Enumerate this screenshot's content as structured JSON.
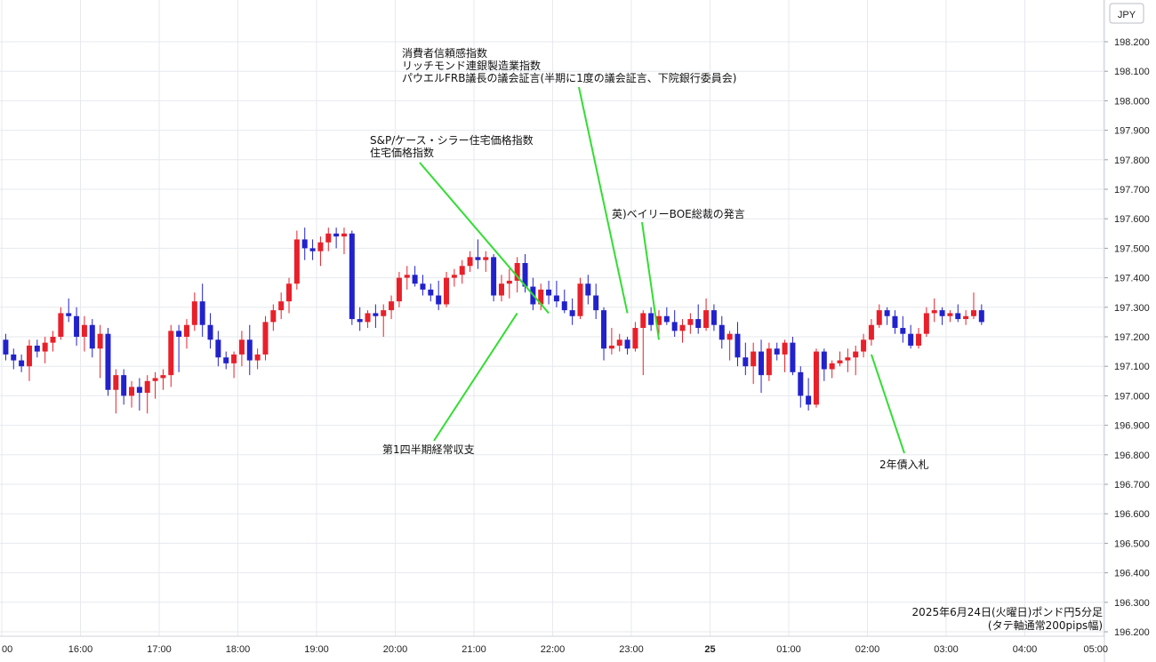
{
  "chart_data": {
    "type": "candlestick",
    "currency_label": "JPY",
    "caption": [
      "2025年6月24日(火曜日)ポンド円5分足",
      "(タテ軸通常200pips幅)"
    ],
    "ylim": [
      196.2,
      198.3
    ],
    "y_ticks": [
      "198.200",
      "198.100",
      "198.000",
      "197.900",
      "197.800",
      "197.700",
      "197.600",
      "197.500",
      "197.400",
      "197.300",
      "197.200",
      "197.100",
      "197.000",
      "196.900",
      "196.800",
      "196.700",
      "196.600",
      "196.500",
      "196.400",
      "196.300",
      "196.200"
    ],
    "x_ticks": [
      {
        "label": "00",
        "bar": 0,
        "bold": false
      },
      {
        "label": "16:00",
        "bar": 10,
        "bold": false
      },
      {
        "label": "17:00",
        "bar": 20,
        "bold": false
      },
      {
        "label": "18:00",
        "bar": 30,
        "bold": false
      },
      {
        "label": "19:00",
        "bar": 40,
        "bold": false
      },
      {
        "label": "20:00",
        "bar": 50,
        "bold": false
      },
      {
        "label": "21:00",
        "bar": 60,
        "bold": false
      },
      {
        "label": "22:00",
        "bar": 70,
        "bold": false
      },
      {
        "label": "23:00",
        "bar": 80,
        "bold": false
      },
      {
        "label": "25",
        "bar": 90,
        "bold": true
      },
      {
        "label": "01:00",
        "bar": 100,
        "bold": false
      },
      {
        "label": "02:00",
        "bar": 110,
        "bold": false
      },
      {
        "label": "03:00",
        "bar": 120,
        "bold": false
      },
      {
        "label": "04:00",
        "bar": 130,
        "bold": false
      },
      {
        "label": "05:00",
        "bar": 140,
        "bold": false
      }
    ],
    "up_color": "#e8202a",
    "down_color": "#2222cc",
    "annotation_color": "#33dd33",
    "ohlc": [
      [
        197.19,
        197.21,
        197.12,
        197.14
      ],
      [
        197.14,
        197.16,
        197.09,
        197.12
      ],
      [
        197.12,
        197.14,
        197.08,
        197.1
      ],
      [
        197.1,
        197.19,
        197.05,
        197.17
      ],
      [
        197.17,
        197.19,
        197.13,
        197.15
      ],
      [
        197.15,
        197.2,
        197.11,
        197.18
      ],
      [
        197.18,
        197.22,
        197.15,
        197.2
      ],
      [
        197.2,
        197.3,
        197.19,
        197.28
      ],
      [
        197.28,
        197.33,
        197.25,
        197.27
      ],
      [
        197.27,
        197.3,
        197.17,
        197.2
      ],
      [
        197.2,
        197.27,
        197.15,
        197.24
      ],
      [
        197.24,
        197.26,
        197.13,
        197.16
      ],
      [
        197.16,
        197.24,
        197.06,
        197.21
      ],
      [
        197.21,
        197.23,
        197.0,
        197.02
      ],
      [
        197.02,
        197.09,
        196.94,
        197.07
      ],
      [
        197.07,
        197.09,
        196.97,
        197.0
      ],
      [
        197.0,
        197.05,
        196.96,
        197.03
      ],
      [
        197.03,
        197.06,
        196.95,
        197.01
      ],
      [
        197.01,
        197.07,
        196.94,
        197.05
      ],
      [
        197.05,
        197.08,
        196.99,
        197.06
      ],
      [
        197.06,
        197.09,
        197.02,
        197.07
      ],
      [
        197.07,
        197.24,
        197.03,
        197.22
      ],
      [
        197.22,
        197.24,
        197.08,
        197.2
      ],
      [
        197.2,
        197.26,
        197.16,
        197.24
      ],
      [
        197.24,
        197.35,
        197.22,
        197.32
      ],
      [
        197.32,
        197.38,
        197.2,
        197.24
      ],
      [
        197.24,
        197.28,
        197.16,
        197.19
      ],
      [
        197.19,
        197.22,
        197.1,
        197.13
      ],
      [
        197.13,
        197.15,
        197.09,
        197.11
      ],
      [
        197.11,
        197.15,
        197.06,
        197.14
      ],
      [
        197.14,
        197.22,
        197.1,
        197.19
      ],
      [
        197.19,
        197.24,
        197.07,
        197.12
      ],
      [
        197.12,
        197.16,
        197.09,
        197.14
      ],
      [
        197.14,
        197.27,
        197.12,
        197.25
      ],
      [
        197.25,
        197.31,
        197.22,
        197.29
      ],
      [
        197.29,
        197.35,
        197.26,
        197.32
      ],
      [
        197.32,
        197.4,
        197.28,
        197.38
      ],
      [
        197.38,
        197.56,
        197.36,
        197.53
      ],
      [
        197.53,
        197.57,
        197.46,
        197.5
      ],
      [
        197.5,
        197.53,
        197.46,
        197.49
      ],
      [
        197.49,
        197.54,
        197.44,
        197.52
      ],
      [
        197.52,
        197.57,
        197.49,
        197.55
      ],
      [
        197.55,
        197.57,
        197.5,
        197.54
      ],
      [
        197.54,
        197.57,
        197.48,
        197.55
      ],
      [
        197.55,
        197.56,
        197.24,
        197.26
      ],
      [
        197.26,
        197.3,
        197.22,
        197.25
      ],
      [
        197.25,
        197.29,
        197.23,
        197.28
      ],
      [
        197.28,
        197.31,
        197.23,
        197.27
      ],
      [
        197.27,
        197.31,
        197.2,
        197.29
      ],
      [
        197.29,
        197.34,
        197.26,
        197.32
      ],
      [
        197.32,
        197.42,
        197.3,
        197.4
      ],
      [
        197.4,
        197.44,
        197.36,
        197.41
      ],
      [
        197.41,
        197.44,
        197.37,
        197.38
      ],
      [
        197.38,
        197.41,
        197.34,
        197.36
      ],
      [
        197.36,
        197.38,
        197.32,
        197.34
      ],
      [
        197.34,
        197.39,
        197.29,
        197.31
      ],
      [
        197.31,
        197.42,
        197.3,
        197.4
      ],
      [
        197.4,
        197.43,
        197.37,
        197.41
      ],
      [
        197.41,
        197.46,
        197.38,
        197.44
      ],
      [
        197.44,
        197.49,
        197.42,
        197.47
      ],
      [
        197.47,
        197.53,
        197.43,
        197.46
      ],
      [
        197.46,
        197.49,
        197.42,
        197.47
      ],
      [
        197.47,
        197.48,
        197.32,
        197.34
      ],
      [
        197.34,
        197.41,
        197.32,
        197.38
      ],
      [
        197.38,
        197.43,
        197.33,
        197.39
      ],
      [
        197.39,
        197.47,
        197.35,
        197.45
      ],
      [
        197.45,
        197.48,
        197.35,
        197.37
      ],
      [
        197.37,
        197.4,
        197.29,
        197.31
      ],
      [
        197.31,
        197.38,
        197.29,
        197.36
      ],
      [
        197.36,
        197.39,
        197.31,
        197.34
      ],
      [
        197.34,
        197.39,
        197.3,
        197.32
      ],
      [
        197.32,
        197.36,
        197.28,
        197.29
      ],
      [
        197.29,
        197.33,
        197.24,
        197.27
      ],
      [
        197.27,
        197.4,
        197.26,
        197.38
      ],
      [
        197.38,
        197.41,
        197.31,
        197.34
      ],
      [
        197.34,
        197.38,
        197.26,
        197.29
      ],
      [
        197.29,
        197.3,
        197.12,
        197.16
      ],
      [
        197.16,
        197.23,
        197.14,
        197.17
      ],
      [
        197.17,
        197.21,
        197.15,
        197.19
      ],
      [
        197.19,
        197.2,
        197.14,
        197.16
      ],
      [
        197.16,
        197.25,
        197.15,
        197.23
      ],
      [
        197.23,
        197.29,
        197.07,
        197.28
      ],
      [
        197.28,
        197.3,
        197.22,
        197.24
      ],
      [
        197.24,
        197.29,
        197.21,
        197.27
      ],
      [
        197.27,
        197.3,
        197.24,
        197.25
      ],
      [
        197.25,
        197.29,
        197.2,
        197.22
      ],
      [
        197.22,
        197.26,
        197.18,
        197.24
      ],
      [
        197.24,
        197.28,
        197.21,
        197.26
      ],
      [
        197.26,
        197.31,
        197.21,
        197.23
      ],
      [
        197.23,
        197.33,
        197.22,
        197.29
      ],
      [
        197.29,
        197.31,
        197.22,
        197.24
      ],
      [
        197.24,
        197.27,
        197.16,
        197.19
      ],
      [
        197.19,
        197.22,
        197.12,
        197.21
      ],
      [
        197.21,
        197.25,
        197.1,
        197.13
      ],
      [
        197.13,
        197.18,
        197.07,
        197.1
      ],
      [
        197.1,
        197.18,
        197.04,
        197.15
      ],
      [
        197.15,
        197.19,
        197.01,
        197.07
      ],
      [
        197.07,
        197.18,
        197.05,
        197.16
      ],
      [
        197.16,
        197.18,
        197.12,
        197.14
      ],
      [
        197.14,
        197.19,
        197.08,
        197.18
      ],
      [
        197.18,
        197.2,
        197.07,
        197.08
      ],
      [
        197.08,
        197.1,
        196.96,
        197.0
      ],
      [
        197.0,
        197.06,
        196.95,
        196.97
      ],
      [
        196.97,
        197.16,
        196.96,
        197.15
      ],
      [
        197.15,
        197.16,
        197.05,
        197.09
      ],
      [
        197.09,
        197.12,
        197.06,
        197.11
      ],
      [
        197.11,
        197.15,
        197.1,
        197.12
      ],
      [
        197.12,
        197.16,
        197.08,
        197.13
      ],
      [
        197.13,
        197.17,
        197.07,
        197.15
      ],
      [
        197.15,
        197.21,
        197.13,
        197.19
      ],
      [
        197.19,
        197.26,
        197.17,
        197.24
      ],
      [
        197.24,
        197.31,
        197.23,
        197.29
      ],
      [
        197.29,
        197.3,
        197.24,
        197.27
      ],
      [
        197.27,
        197.29,
        197.21,
        197.23
      ],
      [
        197.23,
        197.27,
        197.18,
        197.21
      ],
      [
        197.21,
        197.24,
        197.16,
        197.17
      ],
      [
        197.17,
        197.23,
        197.16,
        197.21
      ],
      [
        197.21,
        197.3,
        197.2,
        197.28
      ],
      [
        197.28,
        197.33,
        197.25,
        197.29
      ],
      [
        197.29,
        197.3,
        197.24,
        197.27
      ],
      [
        197.27,
        197.29,
        197.25,
        197.28
      ],
      [
        197.28,
        197.31,
        197.25,
        197.26
      ],
      [
        197.26,
        197.29,
        197.24,
        197.27
      ],
      [
        197.27,
        197.35,
        197.26,
        197.29
      ],
      [
        197.29,
        197.31,
        197.24,
        197.25
      ]
    ],
    "annotations": [
      {
        "lines": [
          "消費者信頼感指数",
          "リッチモンド連銀製造業指数",
          "パウエルFRB議長の議会証言(半期に1度の議会証言、下院銀行委員会)"
        ],
        "value": 197.28,
        "bar": 79
      },
      {
        "lines": [
          "S&P/ケース・シラー住宅価格指数",
          "住宅価格指数"
        ],
        "value": 197.28,
        "bar": 69
      },
      {
        "lines": [
          "英)ベイリーBOE総裁の発言"
        ],
        "value": 197.19,
        "bar": 83
      },
      {
        "lines": [
          "第1四半期経常収支"
        ],
        "value": 197.28,
        "bar": 65
      },
      {
        "lines": [
          "2年債入札"
        ],
        "value": 197.14,
        "bar": 110
      }
    ]
  }
}
